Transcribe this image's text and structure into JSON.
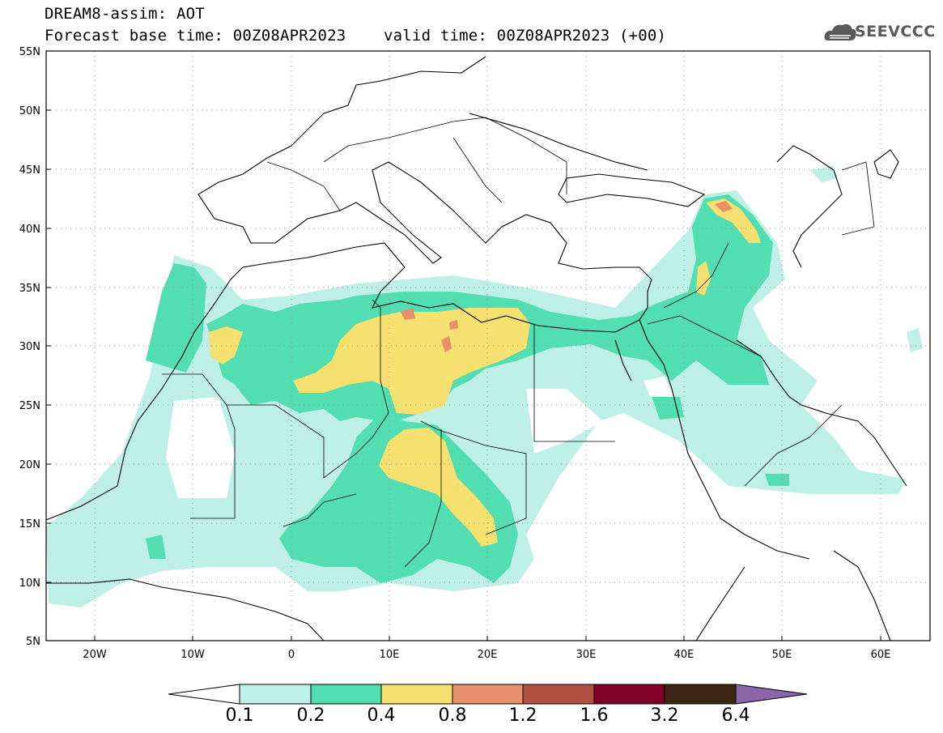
{
  "title": {
    "line1": "DREAM8-assim: AOT",
    "base_time_label": "Forecast base time: 00Z08APR2023",
    "valid_time_label": "valid time: 00Z08APR2023 (+00)"
  },
  "logo": {
    "text": "SEEVCCC",
    "icon": "cloud-logo-icon"
  },
  "map": {
    "lat_ticks": [
      "55N",
      "50N",
      "45N",
      "40N",
      "35N",
      "30N",
      "25N",
      "20N",
      "15N",
      "10N",
      "5N"
    ],
    "lon_ticks": [
      "20W",
      "10W",
      "0",
      "10E",
      "20E",
      "30E",
      "40E",
      "50E",
      "60E"
    ],
    "extent": {
      "lon_min": -25,
      "lon_max": 65,
      "lat_min": 5,
      "lat_max": 55
    }
  },
  "colorbar": {
    "labels": [
      "0.1",
      "0.2",
      "0.4",
      "0.8",
      "1.2",
      "1.6",
      "3.2",
      "6.4"
    ],
    "colors": [
      "#bff0e6",
      "#52deb0",
      "#f5e070",
      "#e8906a",
      "#b0503e",
      "#800028",
      "#3a2612",
      "#8a65a8"
    ]
  }
}
